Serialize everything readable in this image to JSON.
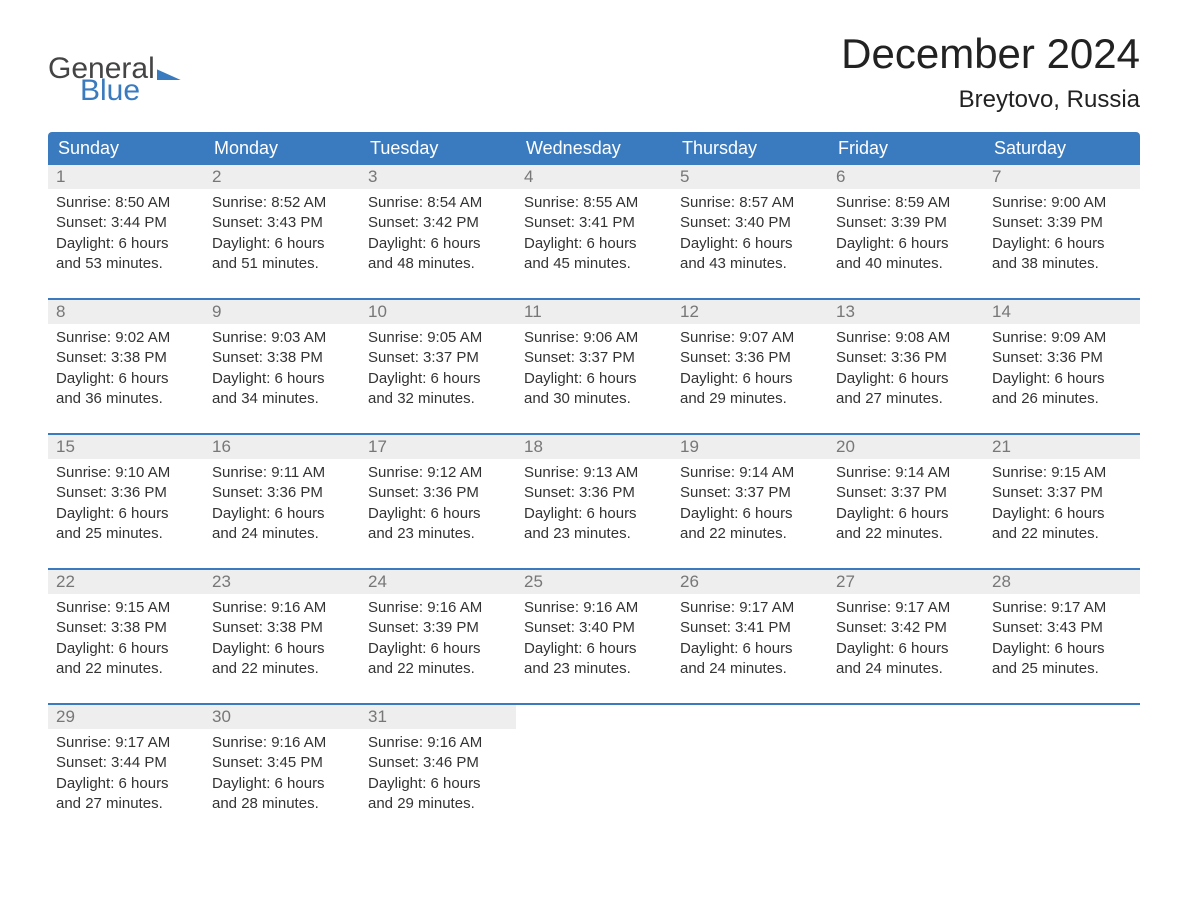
{
  "logo": {
    "line1": "General",
    "line2": "Blue"
  },
  "title": "December 2024",
  "location": "Breytovo, Russia",
  "colors": {
    "header_bg": "#3a7bbf",
    "header_text": "#ffffff",
    "daynum_bg": "#eeeeee",
    "daynum_text": "#777777",
    "body_text": "#333333",
    "week_border": "#3a7bbf",
    "logo_accent": "#3a7bbf",
    "background": "#ffffff"
  },
  "weekdays": [
    "Sunday",
    "Monday",
    "Tuesday",
    "Wednesday",
    "Thursday",
    "Friday",
    "Saturday"
  ],
  "days": [
    {
      "n": 1,
      "sunrise": "8:50 AM",
      "sunset": "3:44 PM",
      "dl": "6 hours and 53 minutes."
    },
    {
      "n": 2,
      "sunrise": "8:52 AM",
      "sunset": "3:43 PM",
      "dl": "6 hours and 51 minutes."
    },
    {
      "n": 3,
      "sunrise": "8:54 AM",
      "sunset": "3:42 PM",
      "dl": "6 hours and 48 minutes."
    },
    {
      "n": 4,
      "sunrise": "8:55 AM",
      "sunset": "3:41 PM",
      "dl": "6 hours and 45 minutes."
    },
    {
      "n": 5,
      "sunrise": "8:57 AM",
      "sunset": "3:40 PM",
      "dl": "6 hours and 43 minutes."
    },
    {
      "n": 6,
      "sunrise": "8:59 AM",
      "sunset": "3:39 PM",
      "dl": "6 hours and 40 minutes."
    },
    {
      "n": 7,
      "sunrise": "9:00 AM",
      "sunset": "3:39 PM",
      "dl": "6 hours and 38 minutes."
    },
    {
      "n": 8,
      "sunrise": "9:02 AM",
      "sunset": "3:38 PM",
      "dl": "6 hours and 36 minutes."
    },
    {
      "n": 9,
      "sunrise": "9:03 AM",
      "sunset": "3:38 PM",
      "dl": "6 hours and 34 minutes."
    },
    {
      "n": 10,
      "sunrise": "9:05 AM",
      "sunset": "3:37 PM",
      "dl": "6 hours and 32 minutes."
    },
    {
      "n": 11,
      "sunrise": "9:06 AM",
      "sunset": "3:37 PM",
      "dl": "6 hours and 30 minutes."
    },
    {
      "n": 12,
      "sunrise": "9:07 AM",
      "sunset": "3:36 PM",
      "dl": "6 hours and 29 minutes."
    },
    {
      "n": 13,
      "sunrise": "9:08 AM",
      "sunset": "3:36 PM",
      "dl": "6 hours and 27 minutes."
    },
    {
      "n": 14,
      "sunrise": "9:09 AM",
      "sunset": "3:36 PM",
      "dl": "6 hours and 26 minutes."
    },
    {
      "n": 15,
      "sunrise": "9:10 AM",
      "sunset": "3:36 PM",
      "dl": "6 hours and 25 minutes."
    },
    {
      "n": 16,
      "sunrise": "9:11 AM",
      "sunset": "3:36 PM",
      "dl": "6 hours and 24 minutes."
    },
    {
      "n": 17,
      "sunrise": "9:12 AM",
      "sunset": "3:36 PM",
      "dl": "6 hours and 23 minutes."
    },
    {
      "n": 18,
      "sunrise": "9:13 AM",
      "sunset": "3:36 PM",
      "dl": "6 hours and 23 minutes."
    },
    {
      "n": 19,
      "sunrise": "9:14 AM",
      "sunset": "3:37 PM",
      "dl": "6 hours and 22 minutes."
    },
    {
      "n": 20,
      "sunrise": "9:14 AM",
      "sunset": "3:37 PM",
      "dl": "6 hours and 22 minutes."
    },
    {
      "n": 21,
      "sunrise": "9:15 AM",
      "sunset": "3:37 PM",
      "dl": "6 hours and 22 minutes."
    },
    {
      "n": 22,
      "sunrise": "9:15 AM",
      "sunset": "3:38 PM",
      "dl": "6 hours and 22 minutes."
    },
    {
      "n": 23,
      "sunrise": "9:16 AM",
      "sunset": "3:38 PM",
      "dl": "6 hours and 22 minutes."
    },
    {
      "n": 24,
      "sunrise": "9:16 AM",
      "sunset": "3:39 PM",
      "dl": "6 hours and 22 minutes."
    },
    {
      "n": 25,
      "sunrise": "9:16 AM",
      "sunset": "3:40 PM",
      "dl": "6 hours and 23 minutes."
    },
    {
      "n": 26,
      "sunrise": "9:17 AM",
      "sunset": "3:41 PM",
      "dl": "6 hours and 24 minutes."
    },
    {
      "n": 27,
      "sunrise": "9:17 AM",
      "sunset": "3:42 PM",
      "dl": "6 hours and 24 minutes."
    },
    {
      "n": 28,
      "sunrise": "9:17 AM",
      "sunset": "3:43 PM",
      "dl": "6 hours and 25 minutes."
    },
    {
      "n": 29,
      "sunrise": "9:17 AM",
      "sunset": "3:44 PM",
      "dl": "6 hours and 27 minutes."
    },
    {
      "n": 30,
      "sunrise": "9:16 AM",
      "sunset": "3:45 PM",
      "dl": "6 hours and 28 minutes."
    },
    {
      "n": 31,
      "sunrise": "9:16 AM",
      "sunset": "3:46 PM",
      "dl": "6 hours and 29 minutes."
    }
  ],
  "labels": {
    "sunrise": "Sunrise:",
    "sunset": "Sunset:",
    "daylight": "Daylight:"
  },
  "layout": {
    "columns": 7,
    "font_family": "Arial",
    "title_fontsize": 42,
    "location_fontsize": 24,
    "weekday_fontsize": 18,
    "daynum_fontsize": 17,
    "body_fontsize": 15
  }
}
